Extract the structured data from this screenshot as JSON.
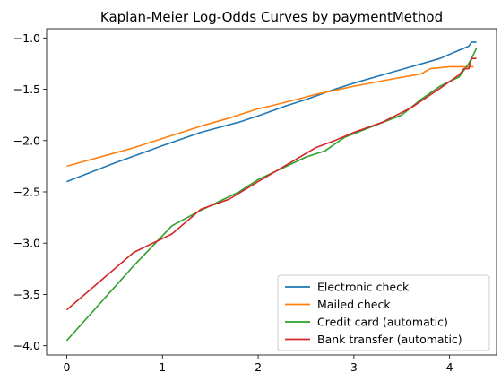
{
  "chart_data": {
    "type": "line",
    "title": "Kaplan-Meier Log-Odds Curves by paymentMethod",
    "xlabel": "",
    "ylabel": "",
    "xlim": [
      -0.21,
      4.49
    ],
    "ylim": [
      -4.09,
      -0.91
    ],
    "xticks": [
      0,
      1,
      2,
      3,
      4
    ],
    "yticks": [
      -4.0,
      -3.5,
      -3.0,
      -2.5,
      -2.0,
      -1.5,
      -1.0
    ],
    "xtick_labels": [
      "0",
      "1",
      "2",
      "3",
      "4"
    ],
    "ytick_labels": [
      "−4.0",
      "−3.5",
      "−3.0",
      "−2.5",
      "−2.0",
      "−1.5",
      "−1.0"
    ],
    "grid": false,
    "legend": "lower-right",
    "series": [
      {
        "name": "Electronic check",
        "color": "#1f77b4",
        "points": [
          [
            0.0,
            -2.4
          ],
          [
            0.5,
            -2.22
          ],
          [
            1.0,
            -2.05
          ],
          [
            1.4,
            -1.92
          ],
          [
            1.8,
            -1.82
          ],
          [
            2.0,
            -1.76
          ],
          [
            2.3,
            -1.66
          ],
          [
            2.5,
            -1.6
          ],
          [
            2.8,
            -1.5
          ],
          [
            3.0,
            -1.44
          ],
          [
            3.3,
            -1.36
          ],
          [
            3.6,
            -1.28
          ],
          [
            3.9,
            -1.2
          ],
          [
            4.1,
            -1.12
          ],
          [
            4.2,
            -1.08
          ],
          [
            4.23,
            -1.04
          ],
          [
            4.28,
            -1.04
          ]
        ]
      },
      {
        "name": "Mailed check",
        "color": "#ff7f0e",
        "points": [
          [
            0.0,
            -2.25
          ],
          [
            0.7,
            -2.07
          ],
          [
            1.0,
            -1.98
          ],
          [
            1.4,
            -1.86
          ],
          [
            1.7,
            -1.78
          ],
          [
            2.0,
            -1.69
          ],
          [
            2.1,
            -1.67
          ],
          [
            2.4,
            -1.6
          ],
          [
            2.6,
            -1.55
          ],
          [
            3.0,
            -1.47
          ],
          [
            3.4,
            -1.4
          ],
          [
            3.7,
            -1.35
          ],
          [
            3.8,
            -1.3
          ],
          [
            4.0,
            -1.28
          ],
          [
            4.25,
            -1.28
          ]
        ]
      },
      {
        "name": "Credit card (automatic)",
        "color": "#2ca02c",
        "points": [
          [
            0.0,
            -3.95
          ],
          [
            0.7,
            -3.22
          ],
          [
            1.1,
            -2.83
          ],
          [
            1.4,
            -2.68
          ],
          [
            1.8,
            -2.5
          ],
          [
            2.0,
            -2.38
          ],
          [
            2.5,
            -2.16
          ],
          [
            2.7,
            -2.1
          ],
          [
            2.9,
            -1.97
          ],
          [
            3.2,
            -1.86
          ],
          [
            3.5,
            -1.75
          ],
          [
            3.7,
            -1.6
          ],
          [
            3.9,
            -1.47
          ],
          [
            4.1,
            -1.38
          ],
          [
            4.2,
            -1.25
          ],
          [
            4.25,
            -1.16
          ],
          [
            4.28,
            -1.1
          ]
        ]
      },
      {
        "name": "Bank transfer (automatic)",
        "color": "#d62728",
        "points": [
          [
            0.0,
            -3.65
          ],
          [
            0.7,
            -3.09
          ],
          [
            1.1,
            -2.91
          ],
          [
            1.4,
            -2.67
          ],
          [
            1.7,
            -2.57
          ],
          [
            2.0,
            -2.4
          ],
          [
            2.4,
            -2.18
          ],
          [
            2.6,
            -2.07
          ],
          [
            2.8,
            -2.0
          ],
          [
            3.0,
            -1.92
          ],
          [
            3.3,
            -1.82
          ],
          [
            3.6,
            -1.68
          ],
          [
            3.9,
            -1.49
          ],
          [
            4.1,
            -1.36
          ],
          [
            4.15,
            -1.3
          ],
          [
            4.2,
            -1.3
          ],
          [
            4.23,
            -1.2
          ],
          [
            4.28,
            -1.2
          ]
        ]
      }
    ]
  }
}
